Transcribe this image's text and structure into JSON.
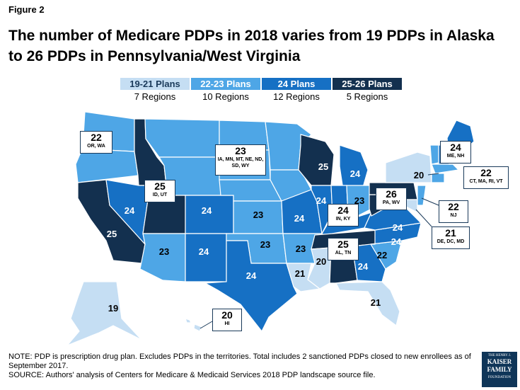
{
  "figure_label": "Figure 2",
  "title_line1": "The number of Medicare PDPs in 2018 varies from 19 PDPs in Alaska",
  "title_line2": "to 26 PDPs in Pennsylvania/West Virginia",
  "colors": {
    "c19_21": "#c5def3",
    "c22_23": "#4ea6e6",
    "c24": "#1670c4",
    "c25_26": "#13304f"
  },
  "legend": [
    {
      "label": "19-21 Plans",
      "count": "7 Regions",
      "color": "#c5def3",
      "text_color": "#1a3a5a"
    },
    {
      "label": "22-23 Plans",
      "count": "10 Regions",
      "color": "#4ea6e6",
      "text_color": "#ffffff"
    },
    {
      "label": "24 Plans",
      "count": "12 Regions",
      "color": "#1670c4",
      "text_color": "#ffffff"
    },
    {
      "label": "25-26 Plans",
      "count": "5 Regions",
      "color": "#13304f",
      "text_color": "#ffffff"
    }
  ],
  "state_labels": {
    "ca": "25",
    "nv": "24",
    "az": "23",
    "co": "24",
    "nm": "24",
    "tx": "24",
    "ks": "23",
    "ok": "23",
    "ar": "23",
    "la": "21",
    "ms": "20",
    "ga": "24",
    "sc": "22",
    "nc": "24",
    "va": "24",
    "mo": "24",
    "il": "24",
    "mi": "24",
    "oh": "23",
    "wi": "25",
    "ny": "20",
    "fl": "21",
    "ak": "19"
  },
  "callouts": {
    "or_wa": {
      "num": "22",
      "states": "OR, WA"
    },
    "id_ut": {
      "num": "25",
      "states": "ID, UT"
    },
    "north": {
      "num": "23",
      "states": "IA, MN, MT, NE, ND, SD, WY"
    },
    "me_nh": {
      "num": "24",
      "states": "ME, NH"
    },
    "ne": {
      "num": "22",
      "states": "CT, MA, RI, VT"
    },
    "pa_wv": {
      "num": "26",
      "states": "PA, WV"
    },
    "in_ky": {
      "num": "24",
      "states": "IN, KY"
    },
    "nj": {
      "num": "22",
      "states": "NJ"
    },
    "de_dc_md": {
      "num": "21",
      "states": "DE, DC, MD"
    },
    "al_tn": {
      "num": "25",
      "states": "AL, TN"
    },
    "hi": {
      "num": "20",
      "states": "HI"
    }
  },
  "note_line1": "NOTE: PDP is prescription drug plan. Excludes PDPs in the territories. Total includes 2 sanctioned PDPs closed to new enrollees as of September 2017.",
  "note_line2": "SOURCE: Authors' analysis of Centers for Medicare & Medicaid Services 2018 PDP landscape source file.",
  "logo": {
    "top": "THE HENRY J.",
    "line1": "KAISER",
    "line2": "FAMILY",
    "bottom": "FOUNDATION"
  }
}
